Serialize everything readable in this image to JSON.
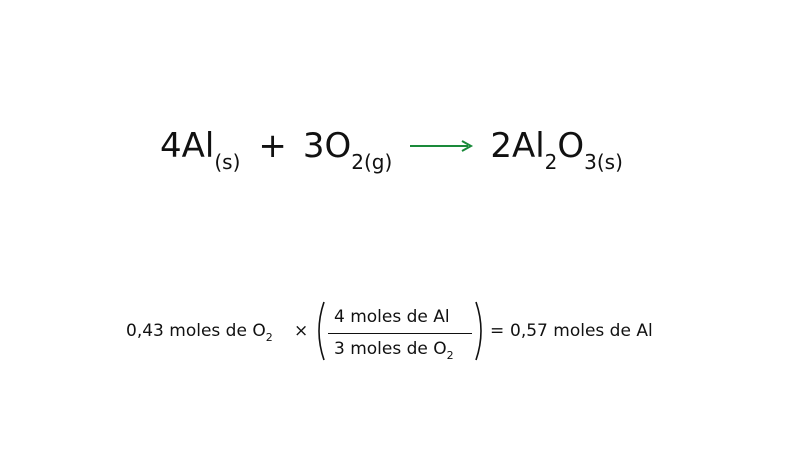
{
  "reaction": {
    "reactant1_coef": "4Al",
    "reactant1_state": "(s)",
    "plus": "+",
    "reactant2_coef": "3O",
    "reactant2_sub": "2(g)",
    "product_part1": "2Al",
    "product_sub1": "2",
    "product_part2": "O",
    "product_sub2": "3(s)",
    "arrow_color": "#1a8a3a"
  },
  "calculation": {
    "given": "0,43 moles de O",
    "given_sub": "2",
    "times": "×",
    "numerator": "4 moles de Al",
    "denominator": "3 moles de O",
    "denominator_sub": "2",
    "equals": "=",
    "result": "0,57 moles de Al"
  }
}
